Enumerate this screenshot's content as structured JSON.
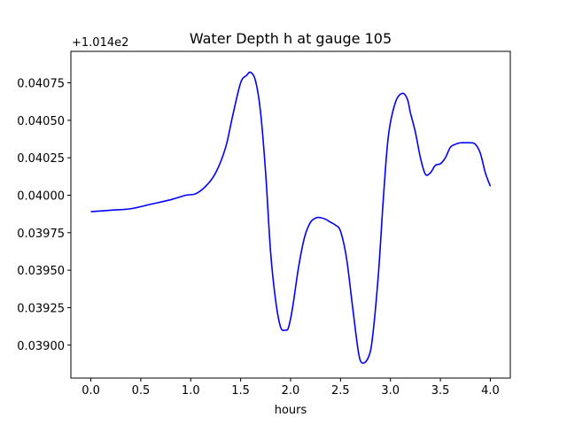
{
  "chart_data": {
    "type": "line",
    "title": "Water Depth h at gauge 105",
    "xlabel": "hours",
    "ylabel": "",
    "y_offset_label": "+1.014e2",
    "xlim": [
      -0.2,
      4.2
    ],
    "ylim": [
      0.03878,
      0.04096
    ],
    "x_ticks": [
      0.0,
      0.5,
      1.0,
      1.5,
      2.0,
      2.5,
      3.0,
      3.5,
      4.0
    ],
    "x_tick_labels": [
      "0.0",
      "0.5",
      "1.0",
      "1.5",
      "2.0",
      "2.5",
      "3.0",
      "3.5",
      "4.0"
    ],
    "y_ticks": [
      0.039,
      0.03925,
      0.0395,
      0.03975,
      0.04,
      0.04025,
      0.0405,
      0.04075
    ],
    "y_tick_labels": [
      "0.03900",
      "0.03925",
      "0.03950",
      "0.03975",
      "0.04000",
      "0.04025",
      "0.04050",
      "0.04075"
    ],
    "grid": false,
    "series": [
      {
        "color": "#0000ff",
        "x": [
          0.0,
          0.2,
          0.4,
          0.6,
          0.8,
          0.95,
          1.05,
          1.15,
          1.25,
          1.35,
          1.42,
          1.5,
          1.56,
          1.6,
          1.65,
          1.7,
          1.75,
          1.8,
          1.85,
          1.9,
          1.95,
          1.98,
          2.02,
          2.08,
          2.14,
          2.2,
          2.26,
          2.3,
          2.35,
          2.4,
          2.45,
          2.5,
          2.56,
          2.62,
          2.68,
          2.72,
          2.78,
          2.82,
          2.88,
          2.93,
          2.98,
          3.05,
          3.12,
          3.17,
          3.2,
          3.25,
          3.3,
          3.35,
          3.4,
          3.45,
          3.5,
          3.55,
          3.6,
          3.65,
          3.7,
          3.75,
          3.8,
          3.85,
          3.9,
          3.95,
          4.0
        ],
        "y": [
          0.03989,
          0.0399,
          0.03991,
          0.03994,
          0.03997,
          0.04,
          0.04001,
          0.04006,
          0.04015,
          0.04032,
          0.04053,
          0.04075,
          0.0408,
          0.04082,
          0.04076,
          0.04055,
          0.04015,
          0.03962,
          0.0393,
          0.03912,
          0.0391,
          0.03912,
          0.03925,
          0.03952,
          0.03972,
          0.03982,
          0.03985,
          0.03985,
          0.03984,
          0.03982,
          0.0398,
          0.03976,
          0.03958,
          0.03926,
          0.03895,
          0.03888,
          0.03892,
          0.03905,
          0.03948,
          0.03999,
          0.0404,
          0.04062,
          0.04068,
          0.04064,
          0.04055,
          0.04042,
          0.04025,
          0.04014,
          0.04015,
          0.0402,
          0.04021,
          0.04025,
          0.04032,
          0.04034,
          0.04035,
          0.04035,
          0.04035,
          0.04034,
          0.04028,
          0.04015,
          0.04006
        ]
      }
    ]
  }
}
